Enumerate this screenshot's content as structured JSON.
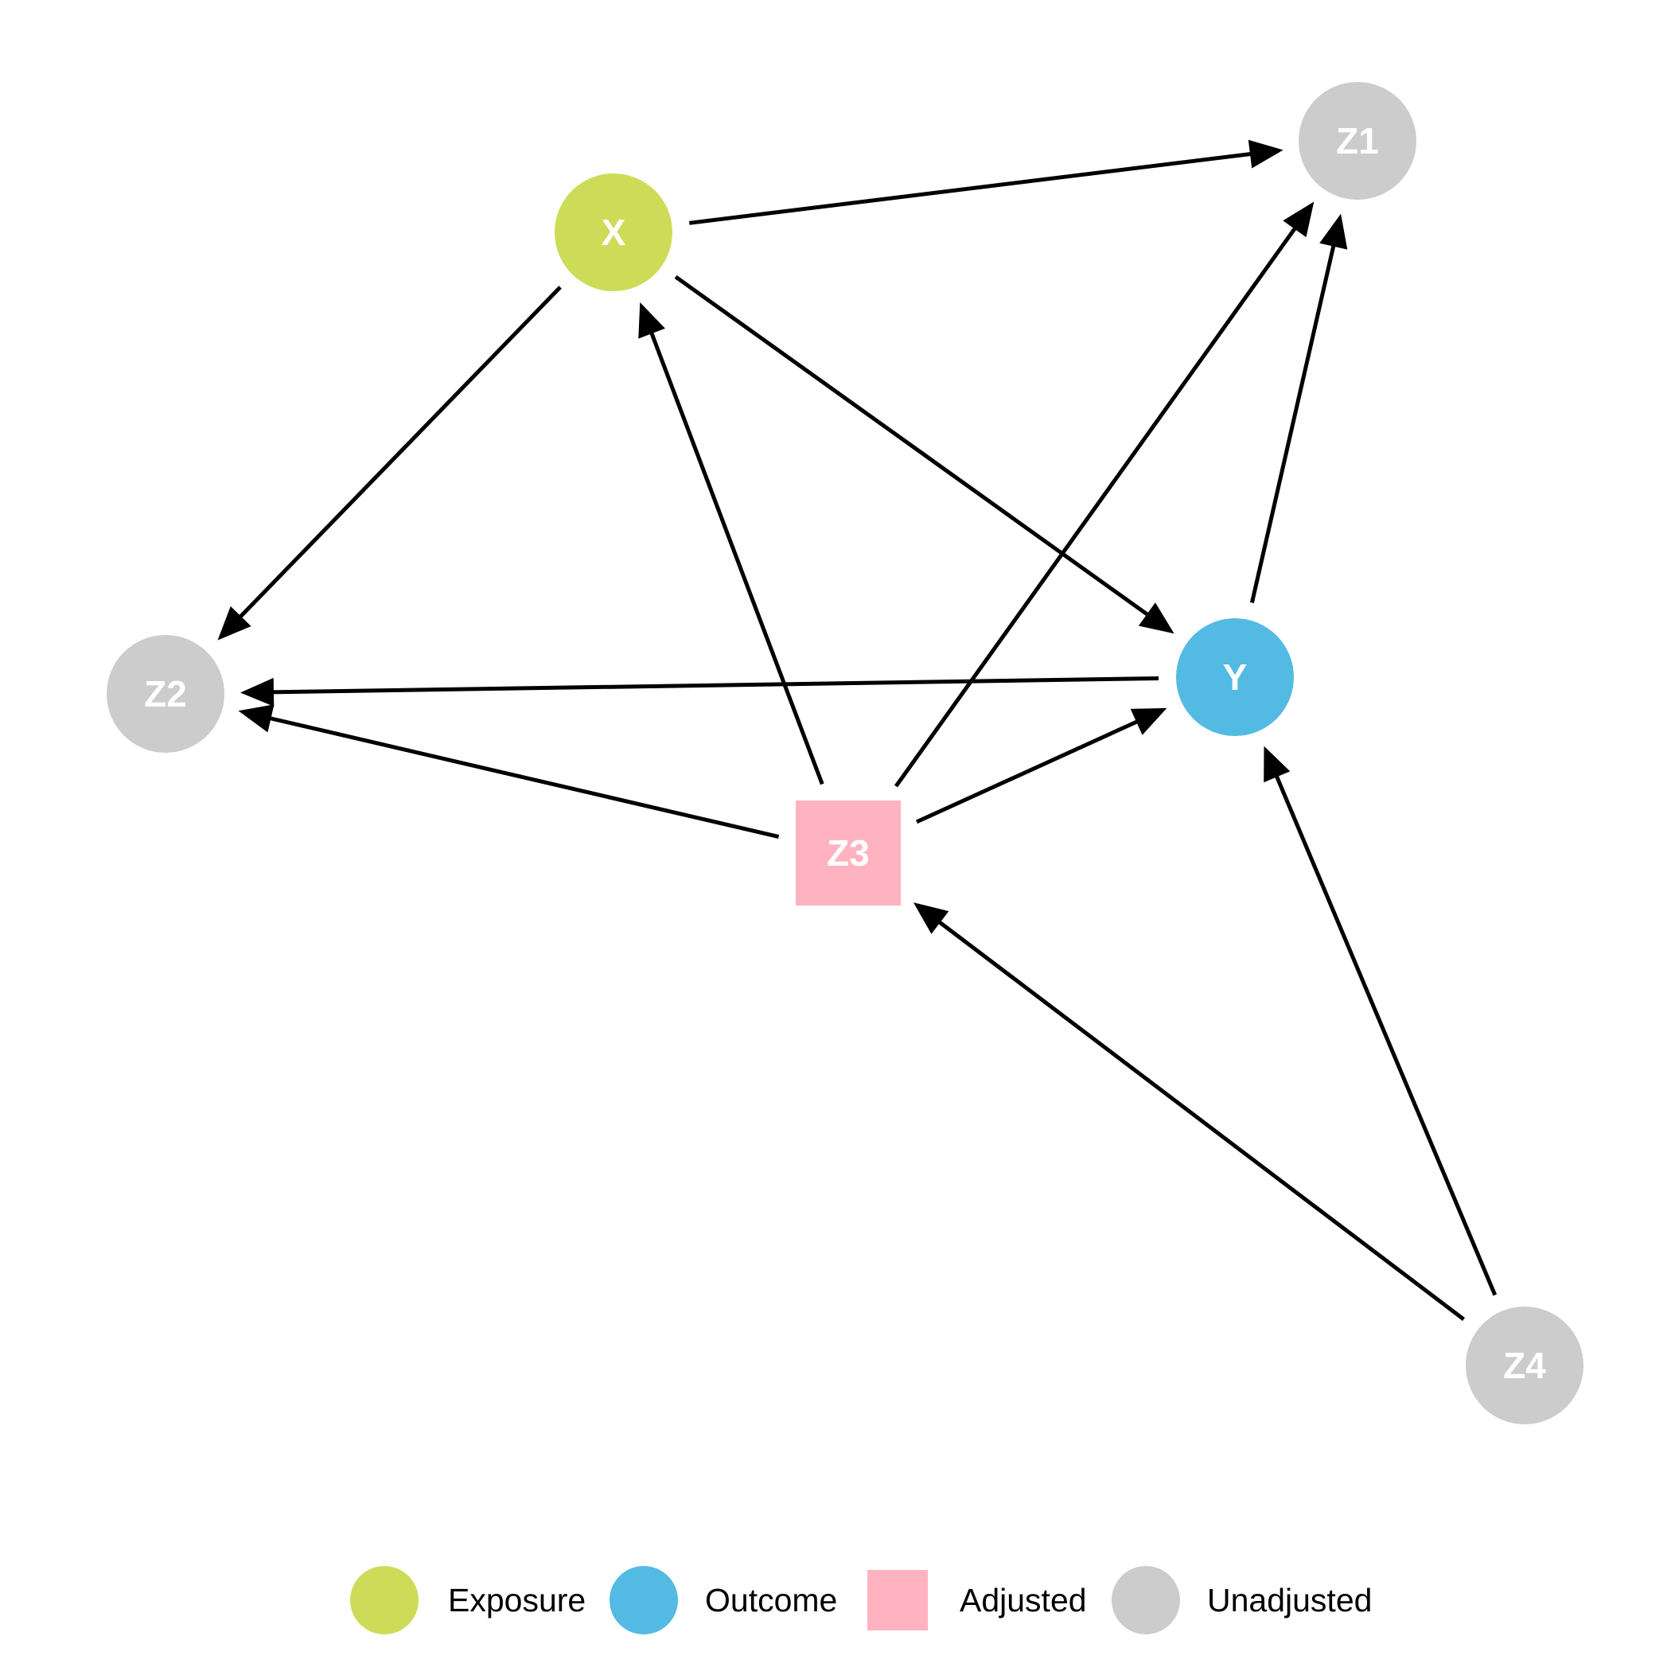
{
  "colors": {
    "exposure": "#cddc58",
    "outcome": "#52bae3",
    "adjusted": "#ffb3c1",
    "unadjusted": "#cccccc",
    "edge": "#000000"
  },
  "nodes": [
    {
      "id": "X",
      "label": "X",
      "status": "exposure",
      "shape": "circle"
    },
    {
      "id": "Y",
      "label": "Y",
      "status": "outcome",
      "shape": "circle"
    },
    {
      "id": "Z1",
      "label": "Z1",
      "status": "unadjusted",
      "shape": "circle"
    },
    {
      "id": "Z2",
      "label": "Z2",
      "status": "unadjusted",
      "shape": "circle"
    },
    {
      "id": "Z3",
      "label": "Z3",
      "status": "adjusted",
      "shape": "square"
    },
    {
      "id": "Z4",
      "label": "Z4",
      "status": "unadjusted",
      "shape": "circle"
    }
  ],
  "edges": [
    {
      "from": "X",
      "to": "Z1"
    },
    {
      "from": "X",
      "to": "Z2"
    },
    {
      "from": "X",
      "to": "Y"
    },
    {
      "from": "Z3",
      "to": "X"
    },
    {
      "from": "Z3",
      "to": "Z1"
    },
    {
      "from": "Y",
      "to": "Z1"
    },
    {
      "from": "Y",
      "to": "Z2"
    },
    {
      "from": "Z3",
      "to": "Z2"
    },
    {
      "from": "Z3",
      "to": "Y"
    },
    {
      "from": "Z4",
      "to": "Z3"
    },
    {
      "from": "Z4",
      "to": "Y"
    }
  ],
  "legend": [
    {
      "label": "Exposure",
      "status": "exposure",
      "shape": "circle"
    },
    {
      "label": "Outcome",
      "status": "outcome",
      "shape": "circle"
    },
    {
      "label": "Adjusted",
      "status": "adjusted",
      "shape": "square"
    },
    {
      "label": "Unadjusted",
      "status": "unadjusted",
      "shape": "circle"
    }
  ]
}
